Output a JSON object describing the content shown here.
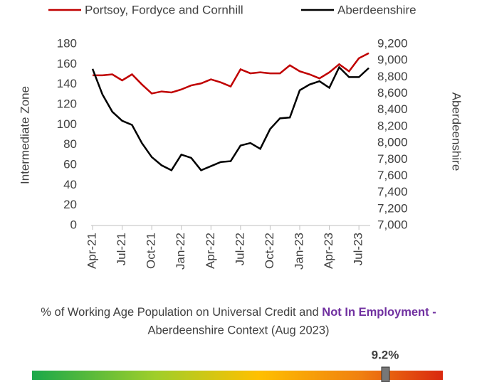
{
  "chart_data": {
    "type": "line",
    "y_label": "Intermediate Zone",
    "y2_label": "Aberdeenshire",
    "categories": [
      "Apr-21",
      null,
      null,
      "Jul-21",
      null,
      null,
      "Oct-21",
      null,
      null,
      "Jan-22",
      null,
      null,
      "Apr-22",
      null,
      null,
      "Jul-22",
      null,
      null,
      "Oct-22",
      null,
      null,
      "Jan-23",
      null,
      null,
      "Apr-23",
      null,
      null,
      "Jul-23",
      null
    ],
    "series": [
      {
        "name": "Portsoy, Fordyce and Cornhill",
        "color": "#c00000",
        "values": [
          149,
          149,
          150,
          144,
          150,
          140,
          131,
          133,
          132,
          135,
          139,
          141,
          145,
          142,
          138,
          155,
          151,
          152,
          151,
          151,
          159,
          153,
          150,
          146,
          152,
          160,
          153,
          166,
          171
        ]
      },
      {
        "name": "Aberdeenshire",
        "color": "#000000",
        "axis": "y2",
        "values": [
          8900,
          8590,
          8380,
          8270,
          8220,
          8000,
          7830,
          7730,
          7670,
          7860,
          7820,
          7670,
          7720,
          7770,
          7780,
          7970,
          8000,
          7930,
          8170,
          8300,
          8310,
          8640,
          8710,
          8750,
          8670,
          8920,
          8800,
          8800,
          8910
        ]
      }
    ],
    "ylim": [
      0,
      180
    ],
    "yticks": [
      0,
      20,
      40,
      60,
      80,
      100,
      120,
      140,
      160,
      180
    ],
    "y2lim": [
      7000,
      9200
    ],
    "y2ticks": [
      {
        "value": 7000,
        "label": "7,000"
      },
      {
        "value": 7200,
        "label": "7,200"
      },
      {
        "value": 7400,
        "label": "7,400"
      },
      {
        "value": 7600,
        "label": "7,600"
      },
      {
        "value": 7800,
        "label": "7,800"
      },
      {
        "value": 8000,
        "label": "8,000"
      },
      {
        "value": 8200,
        "label": "8,200"
      },
      {
        "value": 8400,
        "label": "8,400"
      },
      {
        "value": 8600,
        "label": "8,600"
      },
      {
        "value": 8800,
        "label": "8,800"
      },
      {
        "value": 9000,
        "label": "9,000"
      },
      {
        "value": 9200,
        "label": "9,200"
      }
    ],
    "grid": false,
    "legend": "top"
  },
  "context": {
    "caption_parts": [
      "% of Working Age Population on Universal Credit and ",
      "Not In Employment -",
      " Aberdeenshire Context (Aug 2023)"
    ],
    "marker_label": "9.2%"
  }
}
